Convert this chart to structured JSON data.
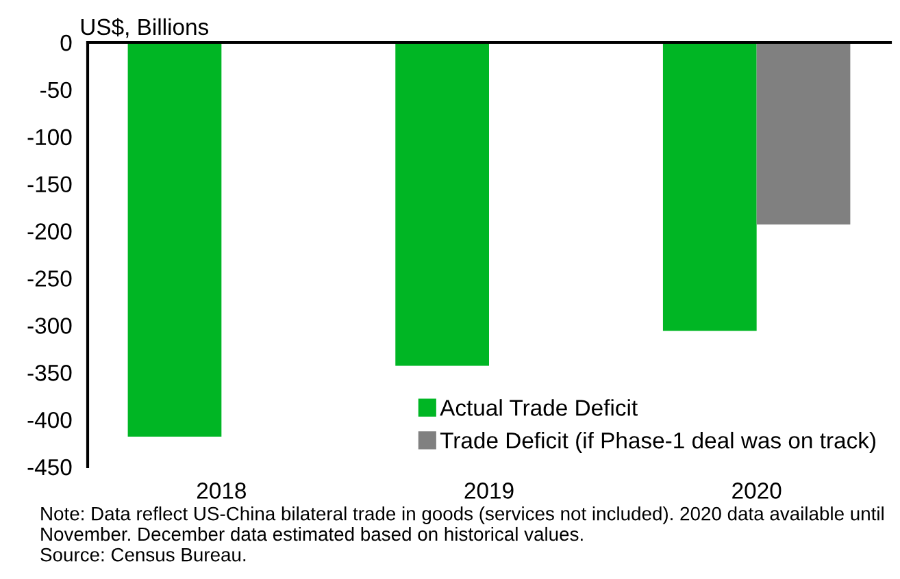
{
  "chart_data": {
    "type": "bar",
    "ylabel": "US$, Billions",
    "categories": [
      "2018",
      "2019",
      "2020"
    ],
    "series": [
      {
        "name": "Actual Trade Deficit",
        "color": "#00b624",
        "values": [
          -418,
          -343,
          -306
        ]
      },
      {
        "name": "Trade Deficit (if Phase-1 deal was on track)",
        "color": "#808080",
        "values": [
          null,
          null,
          -193
        ]
      }
    ],
    "ylim": [
      -450,
      0
    ],
    "yticks": [
      -450,
      -400,
      -350,
      -300,
      -250,
      -200,
      -150,
      -100,
      -50,
      0
    ],
    "grid": false,
    "legend": "bottom right",
    "annotations": [
      "Note: Data reflect US-China bilateral trade in goods (services not included). 2020 data available until November. December data estimated based on historical values.",
      "Source: Census Bureau."
    ]
  }
}
